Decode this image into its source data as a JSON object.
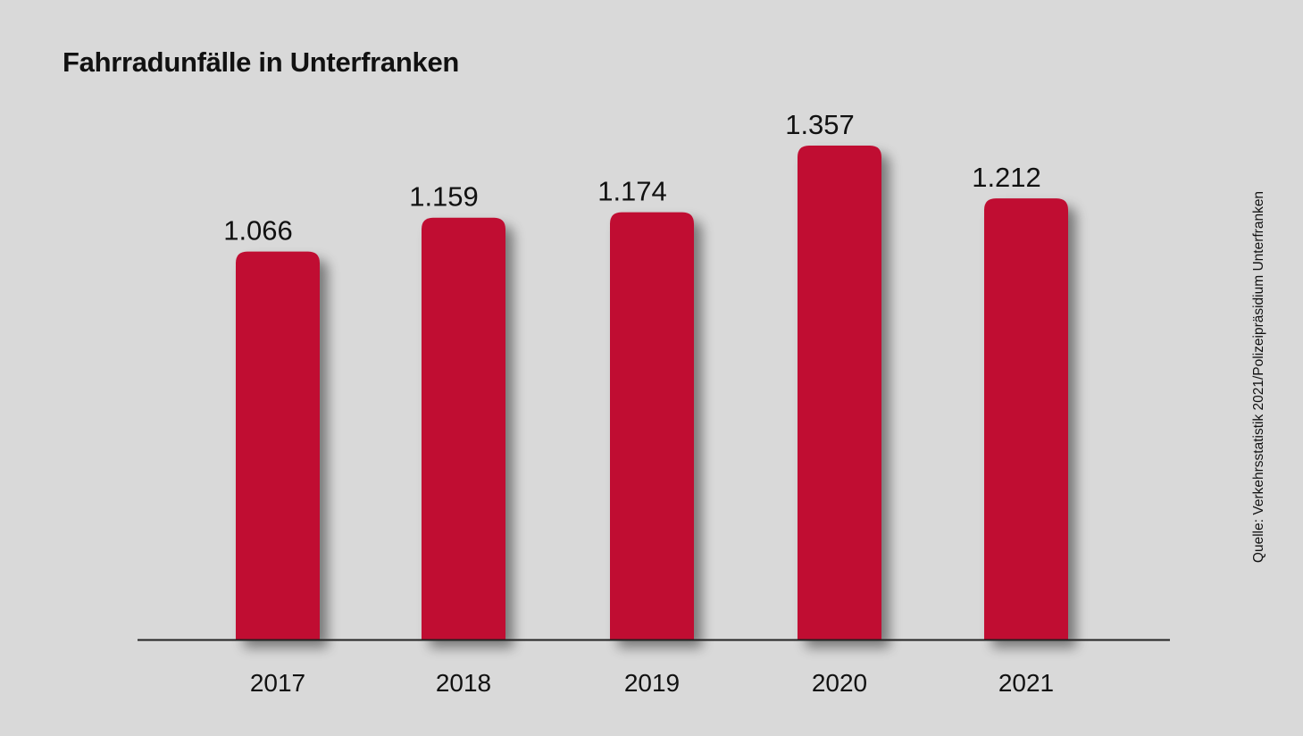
{
  "chart_data": {
    "type": "bar",
    "title": "Fahrradunfälle in Unterfranken",
    "categories": [
      "2017",
      "2018",
      "2019",
      "2020",
      "2021"
    ],
    "values": [
      1066,
      1159,
      1174,
      1357,
      1212
    ],
    "value_labels": [
      "1.066",
      "1.159",
      "1.174",
      "1.357",
      "1.212"
    ],
    "ylim": [
      0,
      1357
    ],
    "grid": false,
    "source": "Quelle: Verkehrsstatistik 2021/Polizeipräsidium Unterfranken",
    "colors": {
      "bar": "#c00e31",
      "background": "#d9d9d9",
      "axis": "#222222",
      "text": "#111111"
    }
  }
}
